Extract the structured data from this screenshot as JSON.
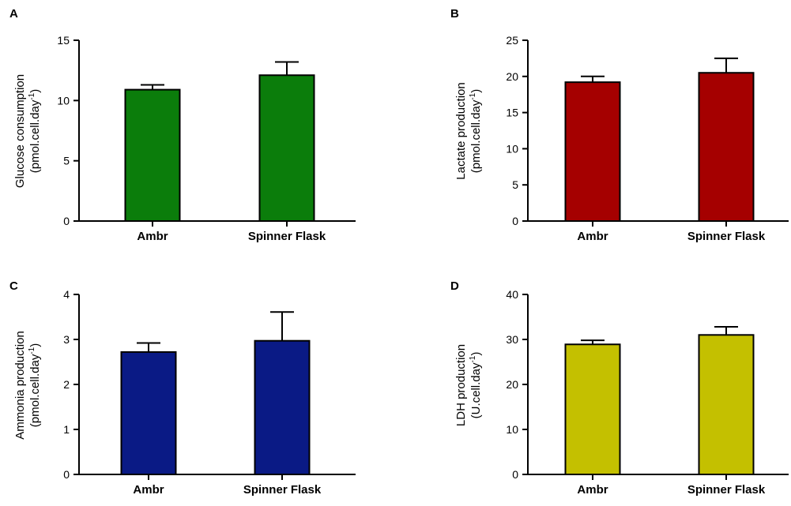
{
  "chart_data": [
    {
      "panel": "A",
      "type": "bar",
      "categories": [
        "Ambr",
        "Spinner Flask"
      ],
      "values": [
        10.9,
        12.1
      ],
      "errors": [
        0.4,
        1.1
      ],
      "ylabel": "Glucose consumption",
      "ylabel_unit": "(pmol.cell.day",
      "ylabel_sup": "-1",
      "ylabel_close": ")",
      "ylim": [
        0,
        15
      ],
      "yticks": [
        0,
        5,
        10,
        15
      ],
      "color": "#0b7d0b"
    },
    {
      "panel": "B",
      "type": "bar",
      "categories": [
        "Ambr",
        "Spinner Flask"
      ],
      "values": [
        19.2,
        20.5
      ],
      "errors": [
        0.8,
        2.0
      ],
      "ylabel": "Lactate production",
      "ylabel_unit": "(pmol.cell.day",
      "ylabel_sup": "-1",
      "ylabel_close": ")",
      "ylim": [
        0,
        25
      ],
      "yticks": [
        0,
        5,
        10,
        15,
        20,
        25
      ],
      "color": "#a50000"
    },
    {
      "panel": "C",
      "type": "bar",
      "categories": [
        "Ambr",
        "Spinner Flask"
      ],
      "values": [
        2.72,
        2.97
      ],
      "errors": [
        0.2,
        0.64
      ],
      "ylabel": "Ammonia production",
      "ylabel_unit": "(pmol.cell.day",
      "ylabel_sup": "-1",
      "ylabel_close": ")",
      "ylim": [
        0,
        4
      ],
      "yticks": [
        0,
        1,
        2,
        3,
        4
      ],
      "color": "#0a1a85"
    },
    {
      "panel": "D",
      "type": "bar",
      "categories": [
        "Ambr",
        "Spinner Flask"
      ],
      "values": [
        28.9,
        31.0
      ],
      "errors": [
        0.9,
        1.8
      ],
      "ylabel": "LDH production",
      "ylabel_unit": "(U.cell.day",
      "ylabel_sup": "-1",
      "ylabel_close": ")",
      "ylim": [
        0,
        40
      ],
      "yticks": [
        0,
        10,
        20,
        30,
        40
      ],
      "color": "#c4c000"
    }
  ]
}
